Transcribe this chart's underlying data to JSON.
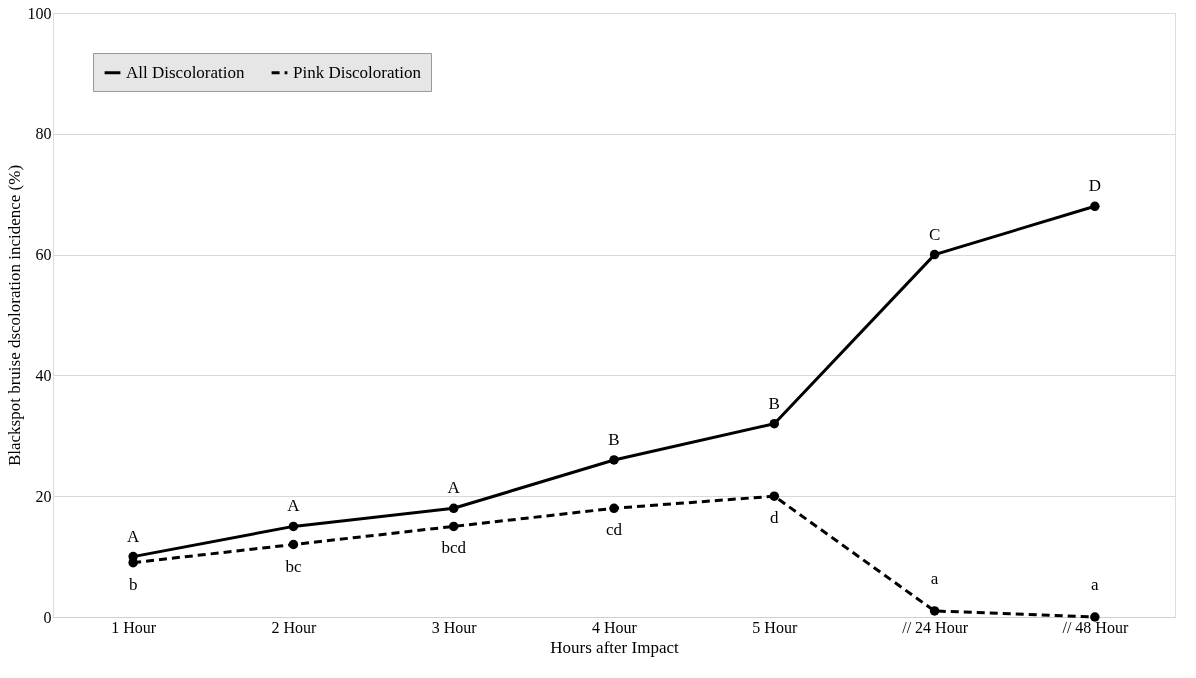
{
  "chart_data": {
    "type": "line",
    "xlabel": "Hours after Impact",
    "ylabel": "Blackspot bruise dscoloration incidence (%)",
    "categories": [
      "1 Hour",
      "2 Hour",
      "3 Hour",
      "4 Hour",
      "5 Hour",
      "// 24 Hour",
      "// 48 Hour"
    ],
    "series": [
      {
        "name": "All Discoloration",
        "color": "#000000",
        "line_style": "solid",
        "values": [
          10,
          15,
          18,
          26,
          32,
          60,
          68
        ],
        "value_labels": [
          "A",
          "A",
          "A",
          "B",
          "B",
          "C",
          "D"
        ]
      },
      {
        "name": "Pink Discoloration",
        "color": "#000000",
        "line_style": "dashed",
        "values": [
          9,
          12,
          15,
          18,
          20,
          1,
          0
        ],
        "value_labels": [
          "b",
          "bc",
          "bcd",
          "cd",
          "d",
          "a",
          "a"
        ]
      }
    ],
    "ylim": [
      0,
      100
    ],
    "yticks": [
      0,
      20,
      40,
      60,
      80,
      100
    ],
    "grid": "y",
    "legend": "top left",
    "marker": "circle"
  }
}
